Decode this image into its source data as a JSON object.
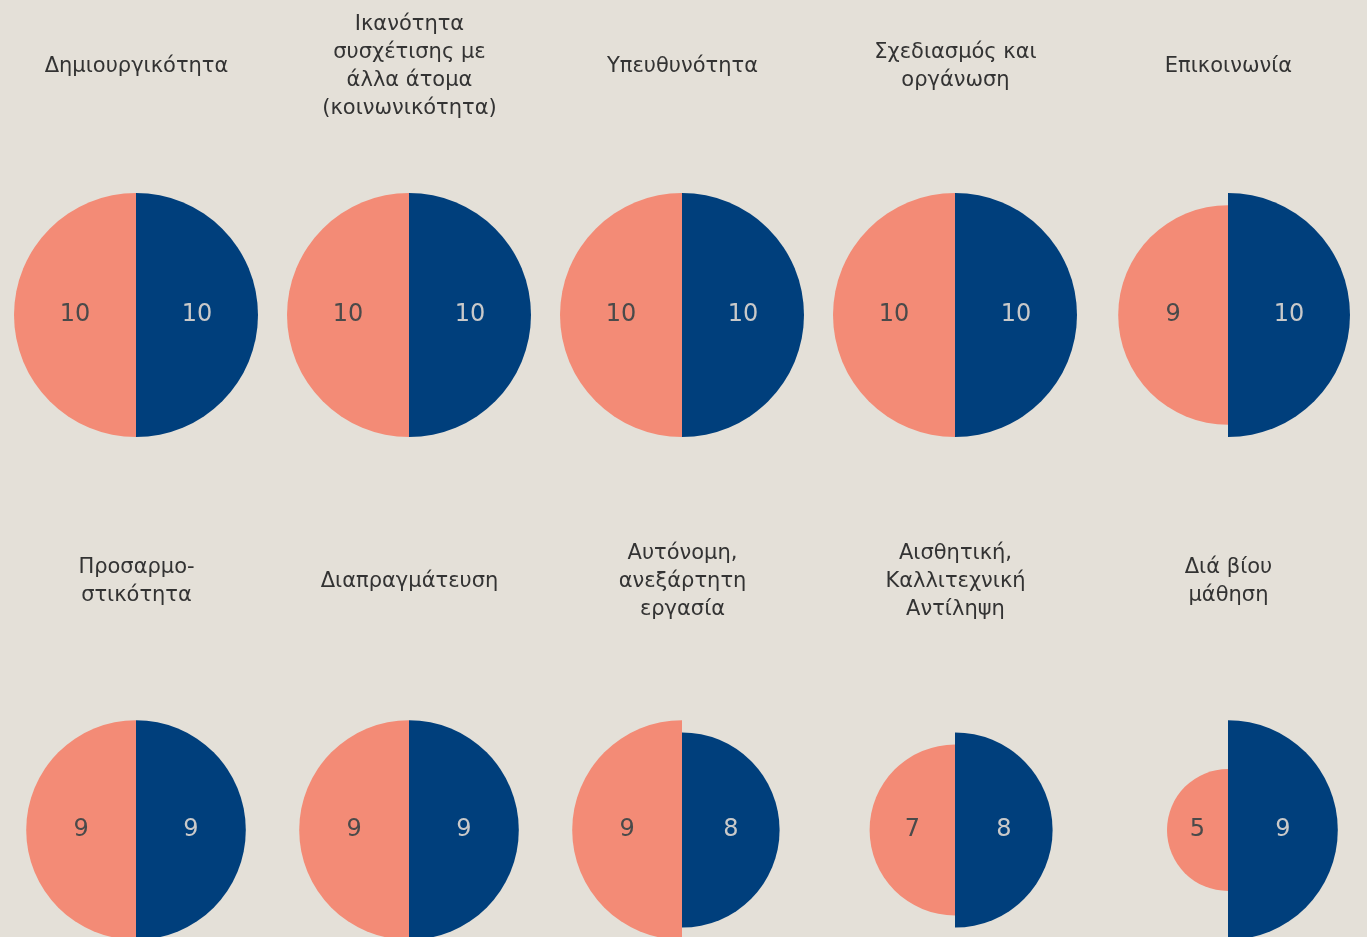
{
  "chart_data": [
    {
      "type": "other",
      "title": "Δημιουργικότητα",
      "categories": [
        null,
        null
      ],
      "values": [
        10,
        10
      ],
      "colors": [
        "#f38b76",
        "#003f7c"
      ],
      "data_labels": true
    },
    {
      "type": "other",
      "title": "Ικανότητα\nσυσχέτισης με\nάλλα άτομα\n(κοινωνικότητα)",
      "categories": [
        null,
        null
      ],
      "values": [
        10,
        10
      ],
      "colors": [
        "#f38b76",
        "#003f7c"
      ],
      "data_labels": true
    },
    {
      "type": "other",
      "title": "Υπευθυνότητα",
      "categories": [
        null,
        null
      ],
      "values": [
        10,
        10
      ],
      "colors": [
        "#f38b76",
        "#003f7c"
      ],
      "data_labels": true
    },
    {
      "type": "other",
      "title": "Σχεδιασμός και\nοργάνωση",
      "categories": [
        null,
        null
      ],
      "values": [
        10,
        10
      ],
      "colors": [
        "#f38b76",
        "#003f7c"
      ],
      "data_labels": true
    },
    {
      "type": "other",
      "title": "Επικοινωνία",
      "categories": [
        null,
        null
      ],
      "values": [
        9,
        10
      ],
      "colors": [
        "#f38b76",
        "#003f7c"
      ],
      "data_labels": true
    },
    {
      "type": "other",
      "title": "Προσαρμο-\nστικότητα",
      "categories": [
        null,
        null
      ],
      "values": [
        9,
        9
      ],
      "colors": [
        "#f38b76",
        "#003f7c"
      ],
      "data_labels": true
    },
    {
      "type": "other",
      "title": "Διαπραγμάτευση",
      "categories": [
        null,
        null
      ],
      "values": [
        9,
        9
      ],
      "colors": [
        "#f38b76",
        "#003f7c"
      ],
      "data_labels": true
    },
    {
      "type": "other",
      "title": "Αυτόνομη,\nανεξάρτητη\nεργασία",
      "categories": [
        null,
        null
      ],
      "values": [
        9,
        8
      ],
      "colors": [
        "#f38b76",
        "#003f7c"
      ],
      "data_labels": true
    },
    {
      "type": "other",
      "title": "Αισθητική,\nΚαλλιτεχνική\nΑντίληψη",
      "categories": [
        null,
        null
      ],
      "values": [
        7,
        8
      ],
      "colors": [
        "#f38b76",
        "#003f7c"
      ],
      "data_labels": true
    },
    {
      "type": "other",
      "title": "Διά βίου\nμάθηση",
      "categories": [
        null,
        null
      ],
      "values": [
        5,
        9
      ],
      "colors": [
        "#f38b76",
        "#003f7c"
      ],
      "data_labels": true
    }
  ]
}
